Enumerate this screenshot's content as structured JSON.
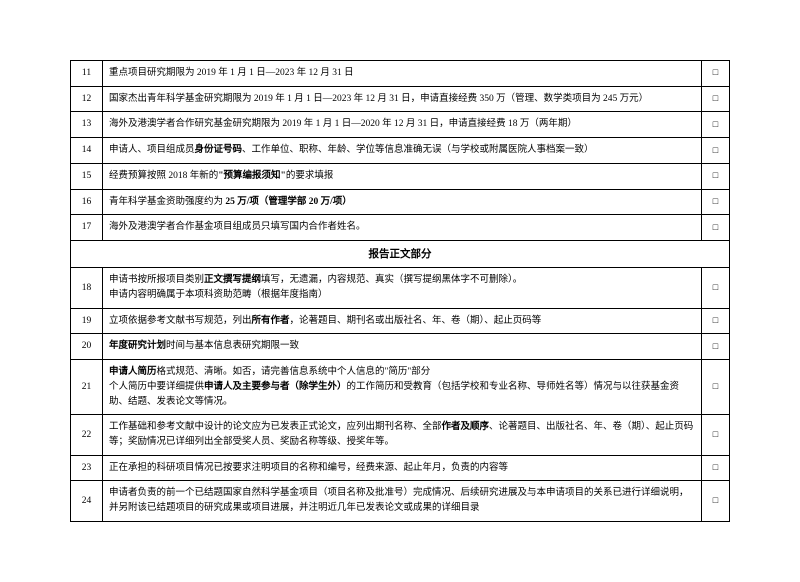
{
  "checkbox_symbol": "□",
  "section_header": "报告正文部分",
  "rows": [
    {
      "num": "11",
      "content": "重点项目研究期限为 2019 年 1 月 1 日—2023 年 12 月 31 日"
    },
    {
      "num": "12",
      "content": "国家杰出青年科学基金研究期限为 2019 年 1 月 1 日—2023 年 12 月 31 日，申请直接经费 350 万（管理、数学类项目为 245 万元）"
    },
    {
      "num": "13",
      "content": "海外及港澳学者合作研究基金研究期限为 2019 年 1 月 1 日—2020 年 12 月 31 日，申请直接经费 18 万（两年期）"
    },
    {
      "num": "14",
      "content": "申请人、项目组成员<span class=\"bold\">身份证号码</span>、工作单位、职称、年龄、学位等信息准确无误（与学校或附属医院人事档案一致）"
    },
    {
      "num": "15",
      "content": "经费预算按照 2018 年新的<span class=\"bold\">\"预算编报须知\"</span>的要求填报"
    },
    {
      "num": "16",
      "content": "青年科学基金资助强度约为 <span class=\"bold\">25 万/项（管理学部 20 万/项）</span>"
    },
    {
      "num": "17",
      "content": "海外及港澳学者合作基金项目组成员只填写国内合作者姓名。"
    },
    {
      "num": "18",
      "content": "申请书按所报项目类别<span class=\"bold\">正文撰写提纲</span>填写，无遗漏，内容规范、真实（撰写提纲黑体字不可删除）。<br>申请内容明确属于本项科资助范畴（根据年度指南）"
    },
    {
      "num": "19",
      "content": "立项依据参考文献书写规范，列出<span class=\"bold\">所有作者</span>，论著题目、期刊名或出版社名、年、卷（期）、起止页码等"
    },
    {
      "num": "20",
      "content": "<span class=\"bold\">年度研究计划</span>时间与基本信息表研究期限一致"
    },
    {
      "num": "21",
      "content": "<span class=\"bold\">申请人简历</span>格式规范、清晰。如否，请完善信息系统中个人信息的\"简历\"部分<br>个人简历中要详细提供<span class=\"bold\">申请人及主要参与者（除学生外）</span>的工作简历和受教育（包括学校和专业名称、导师姓名等）情况与以往获基金资助、结题、发表论文等情况。"
    },
    {
      "num": "22",
      "content": "工作基础和参考文献中设计的论文应为已发表正式论文，应列出期刊名称、全部<span class=\"bold\">作者及顺序</span>、论著题目、出版社名、年、卷（期）、起止页码等；奖励情况已详细列出全部受奖人员、奖励名称等级、授奖年等。"
    },
    {
      "num": "23",
      "content": "正在承担的科研项目情况已按要求注明项目的名称和编号，经费来源、起止年月，负责的内容等"
    },
    {
      "num": "24",
      "content": "申请者负责的前一个已结题国家自然科学基金项目（项目名称及批准号）完成情况、后续研究进展及与本申请项目的关系已进行详细说明，并另附该已结题项目的研究成果或项目进展，并注明近几年已发表论文或成果的详细目录"
    }
  ]
}
